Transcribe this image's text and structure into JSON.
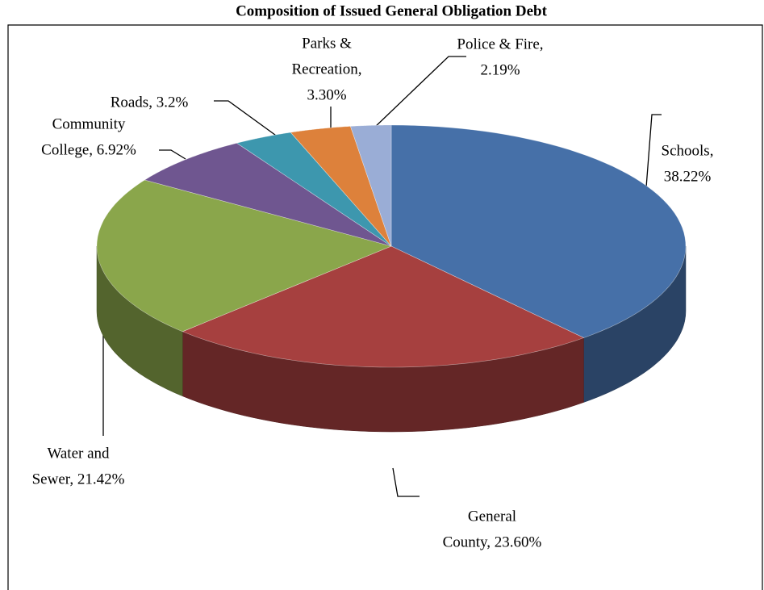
{
  "chart_data": {
    "type": "pie",
    "title": "Composition of Issued General Obligation Debt",
    "categories": [
      "Schools",
      "General County",
      "Water and Sewer",
      "Community College",
      "Roads",
      "Parks & Recreation",
      "Police & Fire"
    ],
    "values": [
      38.22,
      23.6,
      21.42,
      6.92,
      3.2,
      3.3,
      2.19
    ],
    "value_labels": [
      [
        "Schools,",
        "38.22%"
      ],
      [
        "General",
        "County, 23.60%"
      ],
      [
        "Water and",
        "Sewer, 21.42%"
      ],
      [
        "Community",
        "College, 6.92%"
      ],
      [
        "Roads, 3.2%"
      ],
      [
        "Parks &",
        "Recreation,",
        "3.30%"
      ],
      [
        "Police & Fire,",
        "2.19%"
      ]
    ],
    "colors": [
      "#4670a8",
      "#a6403f",
      "#8aa64b",
      "#6f5690",
      "#3d97ae",
      "#dd813b",
      "#9aadd6"
    ]
  }
}
